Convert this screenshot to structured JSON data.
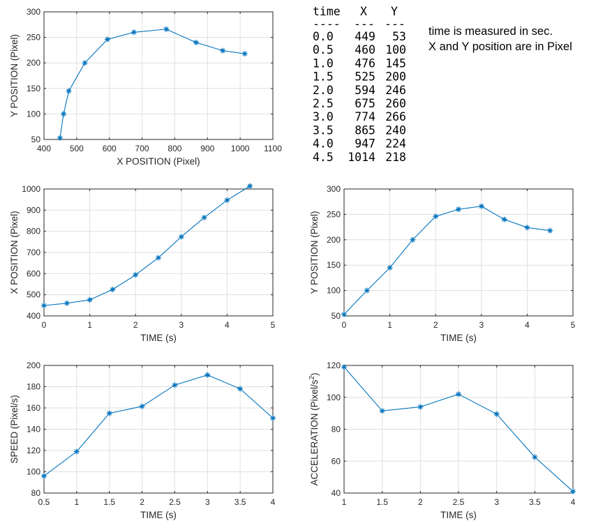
{
  "chart_data": [
    {
      "id": "y-vs-x",
      "type": "line",
      "marker": "asterisk",
      "xlabel": "X POSITION (Pixel)",
      "ylabel": "Y POSITION (Pixel)",
      "xlim": [
        400,
        1100
      ],
      "ylim": [
        50,
        300
      ],
      "xticks": [
        400,
        500,
        600,
        700,
        800,
        900,
        1000,
        1100
      ],
      "yticks": [
        50,
        100,
        150,
        200,
        250,
        300
      ],
      "grid": true,
      "series": [
        {
          "x": [
            449,
            460,
            476,
            525,
            594,
            675,
            774,
            865,
            947,
            1014
          ],
          "y": [
            53,
            100,
            145,
            200,
            246,
            260,
            266,
            240,
            224,
            218
          ]
        }
      ]
    },
    {
      "id": "x-vs-time",
      "type": "line",
      "marker": "asterisk",
      "xlabel": "TIME (s)",
      "ylabel": "X POSITION (Pixel)",
      "xlim": [
        0,
        5
      ],
      "ylim": [
        400,
        1000
      ],
      "xticks": [
        0,
        1,
        2,
        3,
        4,
        5
      ],
      "yticks": [
        400,
        500,
        600,
        700,
        800,
        900,
        1000
      ],
      "grid": true,
      "series": [
        {
          "x": [
            0,
            0.5,
            1,
            1.5,
            2,
            2.5,
            3,
            3.5,
            4,
            4.5
          ],
          "y": [
            449,
            460,
            476,
            525,
            594,
            675,
            774,
            865,
            947,
            1014
          ]
        }
      ]
    },
    {
      "id": "y-vs-time",
      "type": "line",
      "marker": "asterisk",
      "xlabel": "TIME (s)",
      "ylabel": "Y POSITION (Pixel)",
      "xlim": [
        0,
        5
      ],
      "ylim": [
        50,
        300
      ],
      "xticks": [
        0,
        1,
        2,
        3,
        4,
        5
      ],
      "yticks": [
        50,
        100,
        150,
        200,
        250,
        300
      ],
      "grid": true,
      "series": [
        {
          "x": [
            0,
            0.5,
            1,
            1.5,
            2,
            2.5,
            3,
            3.5,
            4,
            4.5
          ],
          "y": [
            53,
            100,
            145,
            200,
            246,
            260,
            266,
            240,
            224,
            218
          ]
        }
      ]
    },
    {
      "id": "speed-vs-time",
      "type": "line",
      "marker": "asterisk",
      "xlabel": "TIME (s)",
      "ylabel": "SPEED (Pixel/s)",
      "xlim": [
        0.5,
        4
      ],
      "ylim": [
        80,
        200
      ],
      "xticks": [
        0.5,
        1,
        1.5,
        2,
        2.5,
        3,
        3.5,
        4
      ],
      "yticks": [
        80,
        100,
        120,
        140,
        160,
        180,
        200
      ],
      "grid": true,
      "series": [
        {
          "x": [
            0.5,
            1,
            1.5,
            2,
            2.5,
            3,
            3.5,
            4
          ],
          "y": [
            96,
            119,
            155,
            161.5,
            181.5,
            191,
            178,
            150.5
          ]
        }
      ]
    },
    {
      "id": "acceleration-vs-time",
      "type": "line",
      "marker": "asterisk",
      "xlabel": "TIME (s)",
      "ylabel": "ACCELERATION (Pixel/s",
      "ylabel_sup": "2",
      "ylabel_tail": ")",
      "xlim": [
        1,
        4
      ],
      "ylim": [
        40,
        120
      ],
      "xticks": [
        1,
        1.5,
        2,
        2.5,
        3,
        3.5,
        4
      ],
      "yticks": [
        40,
        60,
        80,
        100,
        120
      ],
      "grid": true,
      "series": [
        {
          "x": [
            1,
            1.5,
            2,
            2.5,
            3,
            3.5,
            4
          ],
          "y": [
            119,
            91.5,
            94,
            102,
            89.5,
            62.5,
            41
          ]
        }
      ]
    }
  ],
  "table": {
    "headers": [
      "time",
      "X",
      "Y"
    ],
    "dashes": [
      "----",
      "---",
      "---"
    ],
    "rows": [
      [
        "0.0",
        "449",
        "53"
      ],
      [
        "0.5",
        "460",
        "100"
      ],
      [
        "1.0",
        "476",
        "145"
      ],
      [
        "1.5",
        "525",
        "200"
      ],
      [
        "2.0",
        "594",
        "246"
      ],
      [
        "2.5",
        "675",
        "260"
      ],
      [
        "3.0",
        "774",
        "266"
      ],
      [
        "3.5",
        "865",
        "240"
      ],
      [
        "4.0",
        "947",
        "224"
      ],
      [
        "4.5",
        "1014",
        "218"
      ]
    ]
  },
  "notes": [
    "time is measured in sec.",
    "X and Y position are in Pixel"
  ]
}
